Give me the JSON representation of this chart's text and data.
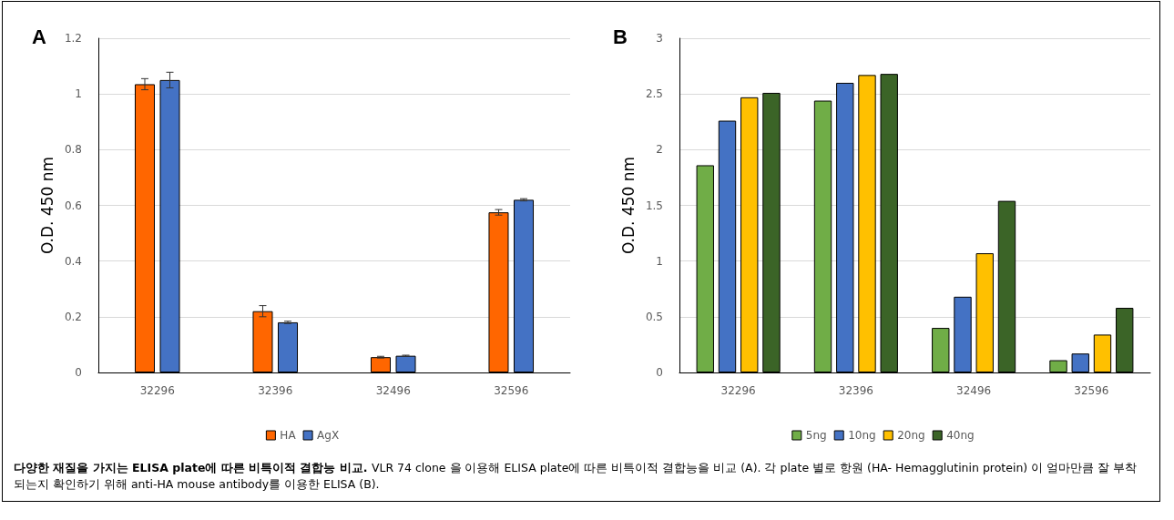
{
  "chart_data": [
    {
      "type": "bar",
      "title": "A",
      "ylabel": "O.D. 450 nm",
      "categories": [
        "32296",
        "32396",
        "32496",
        "32596"
      ],
      "series": [
        {
          "name": "HA",
          "color": "#ff6600",
          "values": [
            1.035,
            0.22,
            0.055,
            0.575
          ],
          "errors": [
            0.02,
            0.02,
            0.003,
            0.01
          ]
        },
        {
          "name": "AgX",
          "color": "#4472c4",
          "values": [
            1.05,
            0.18,
            0.06,
            0.62
          ],
          "errors": [
            0.028,
            0.004,
            0.002,
            0.004
          ]
        }
      ],
      "ylim": [
        0,
        1.2
      ],
      "yticks": [
        0,
        0.2,
        0.4,
        0.6,
        0.8,
        1,
        1.2
      ],
      "grid": "y",
      "legend": "bottom",
      "annotations": [
        "다양한 재질을 가지는 ELISA plate에 따른 비특이적 결합능 비교.",
        "VLR 74 clone 을 이용해 ELISA plate에 따른 비특이적 결합능을 비교 (A). 각 plate 별로 항원 (HA- Hemagglutinin protein) 이 얼마만큼 잘 부착되는지 확인하기 위해 anti-HA mouse antibody를 이용한 ELISA (B)."
      ]
    },
    {
      "type": "bar",
      "title": "B",
      "ylabel": "O.D. 450 nm",
      "categories": [
        "32296",
        "32396",
        "32496",
        "32596"
      ],
      "series": [
        {
          "name": "5ng",
          "color": "#70ad47",
          "values": [
            1.86,
            2.44,
            0.4,
            0.11
          ]
        },
        {
          "name": "10ng",
          "color": "#4472c4",
          "values": [
            2.26,
            2.6,
            0.68,
            0.17
          ]
        },
        {
          "name": "20ng",
          "color": "#ffc000",
          "values": [
            2.47,
            2.67,
            1.07,
            0.34
          ]
        },
        {
          "name": "40ng",
          "color": "#3b6427",
          "values": [
            2.51,
            2.68,
            1.54,
            0.58
          ]
        }
      ],
      "ylim": [
        0,
        3
      ],
      "yticks": [
        0,
        0.5,
        1,
        1.5,
        2,
        2.5,
        3
      ],
      "grid": "y",
      "legend": "bottom"
    }
  ]
}
